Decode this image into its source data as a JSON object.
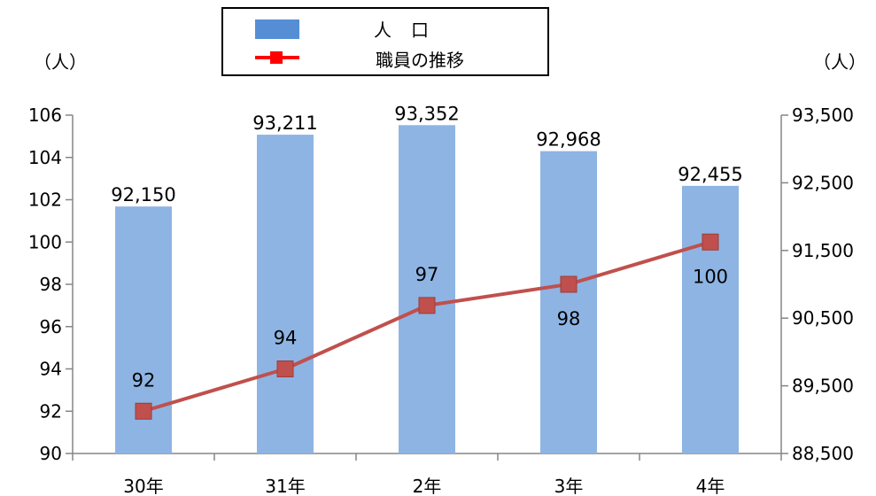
{
  "chart_data": {
    "type": "bar+line",
    "categories": [
      "30年",
      "31年",
      "2年",
      "3年",
      "4年"
    ],
    "series": [
      {
        "name": "人　口",
        "type": "bar",
        "axis": "right",
        "values": [
          92150,
          93211,
          93352,
          92968,
          92455
        ],
        "labels": [
          "92,150",
          "93,211",
          "93,352",
          "92,968",
          "92,455"
        ],
        "color": "#8EB4E3"
      },
      {
        "name": "職員の推移",
        "type": "line",
        "axis": "left",
        "values": [
          92,
          94,
          97,
          98,
          100
        ],
        "labels": [
          "92",
          "94",
          "97",
          "98",
          "100"
        ],
        "color": "#C0504D"
      }
    ],
    "left_axis": {
      "unit_label": "（人）",
      "min": 90,
      "max": 106,
      "step": 2,
      "ticks": [
        "90",
        "92",
        "94",
        "96",
        "98",
        "100",
        "102",
        "104",
        "106"
      ]
    },
    "right_axis": {
      "unit_label": "（人）",
      "min": 88500,
      "max": 93500,
      "step": 1000,
      "ticks": [
        "88,500",
        "89,500",
        "90,500",
        "91,500",
        "92,500",
        "93,500"
      ]
    },
    "legend": {
      "placement": "top-center",
      "bar_color": "#558ED5"
    }
  }
}
